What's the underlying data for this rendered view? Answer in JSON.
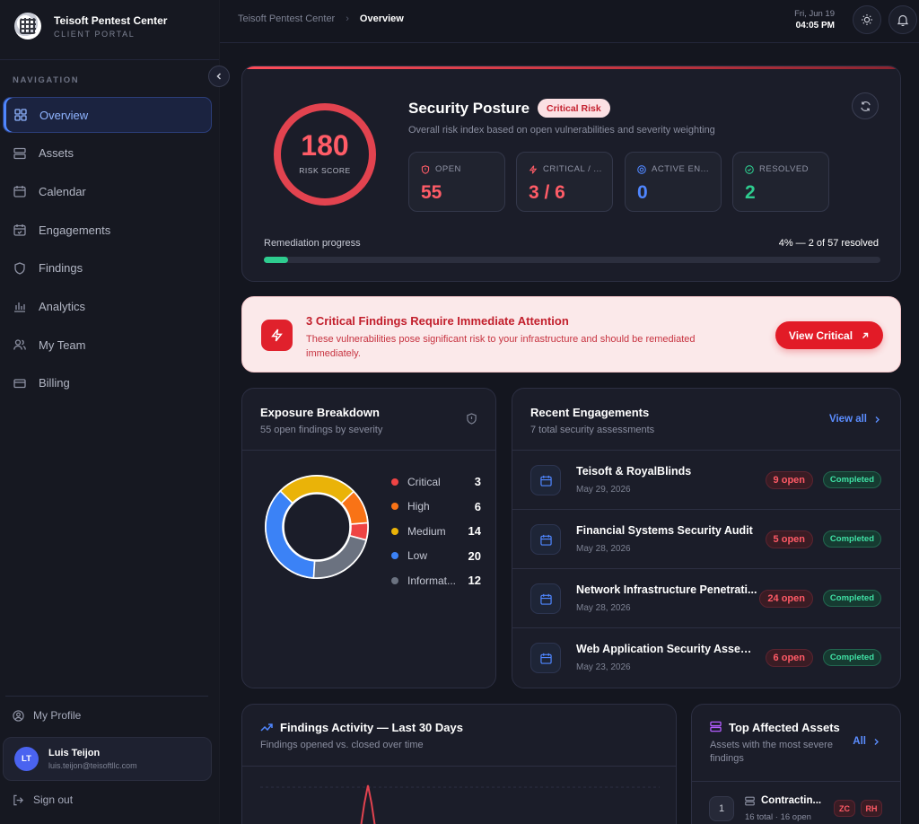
{
  "brand": {
    "name": "Teisoft Pentest Center",
    "subtitle": "CLIENT PORTAL"
  },
  "nav": {
    "title": "NAVIGATION",
    "items": [
      {
        "label": "Overview",
        "icon": "grid-icon",
        "active": true
      },
      {
        "label": "Assets",
        "icon": "server-icon"
      },
      {
        "label": "Calendar",
        "icon": "calendar-icon"
      },
      {
        "label": "Engagements",
        "icon": "calendar-check-icon"
      },
      {
        "label": "Findings",
        "icon": "shield-icon"
      },
      {
        "label": "Analytics",
        "icon": "bar-chart-icon"
      },
      {
        "label": "My Team",
        "icon": "users-icon"
      },
      {
        "label": "Billing",
        "icon": "credit-card-icon"
      }
    ]
  },
  "footer": {
    "profile_label": "My Profile",
    "user": {
      "initials": "LT",
      "name": "Luis Teijon",
      "email": "luis.teijon@teisoftllc.com"
    },
    "signout_label": "Sign out"
  },
  "topbar": {
    "breadcrumb_root": "Teisoft Pentest Center",
    "breadcrumb_current": "Overview",
    "date": "Fri, Jun 19",
    "time": "04:05 PM"
  },
  "posture": {
    "score": "180",
    "score_label": "RISK SCORE",
    "title": "Security Posture",
    "badge": "Critical Risk",
    "description": "Overall risk index based on open vulnerabilities and severity weighting",
    "stats": [
      {
        "label": "OPEN",
        "value": "55",
        "color": "#ff5c67",
        "icon": "shield-alert-icon"
      },
      {
        "label": "CRITICAL / ...",
        "value": "3 / 6",
        "color": "#ff5c67",
        "icon": "zap-icon"
      },
      {
        "label": "ACTIVE EN...",
        "value": "0",
        "color": "#4f86ff",
        "icon": "radar-icon"
      },
      {
        "label": "RESOLVED",
        "value": "2",
        "color": "#2ecc8f",
        "icon": "check-circle-icon"
      }
    ],
    "progress_label": "Remediation progress",
    "progress_text": "4% — 2 of 57 resolved",
    "progress_fraction": 0.04
  },
  "alert": {
    "title": "3 Critical Findings Require Immediate Attention",
    "text": "These vulnerabilities pose significant risk to your infrastructure and should be remediated immediately.",
    "button": "View Critical"
  },
  "exposure": {
    "title": "Exposure Breakdown",
    "subtitle": "55 open findings by severity"
  },
  "chart_data": {
    "type": "pie",
    "categories": [
      "Critical",
      "High",
      "Medium",
      "Low",
      "Informat..."
    ],
    "values": [
      3,
      6,
      14,
      20,
      12
    ],
    "colors": [
      "#ef4444",
      "#f97316",
      "#eab308",
      "#3b82f6",
      "#6b7280"
    ],
    "title": "",
    "legend": "right"
  },
  "engagements": {
    "title": "Recent Engagements",
    "subtitle": "7 total security assessments",
    "view_all": "View all",
    "items": [
      {
        "name": "Teisoft & RoyalBlinds",
        "date": "May 29, 2026",
        "open": "9 open",
        "status": "Completed"
      },
      {
        "name": "Financial Systems Security Audit",
        "date": "May 28, 2026",
        "open": "5 open",
        "status": "Completed"
      },
      {
        "name": "Network Infrastructure Penetrati...",
        "date": "May 28, 2026",
        "open": "24 open",
        "status": "Completed"
      },
      {
        "name": "Web Application Security Assess...",
        "date": "May 23, 2026",
        "open": "6 open",
        "status": "Completed"
      }
    ]
  },
  "activity": {
    "title": "Findings Activity — Last 30 Days",
    "subtitle": "Findings opened vs. closed over time"
  },
  "assets": {
    "title": "Top Affected Assets",
    "subtitle": "Assets with the most severe findings",
    "all_label": "All",
    "items": [
      {
        "rank": "1",
        "name": "Contractin...",
        "meta": "16 total · 16 open",
        "tags": [
          "ZC",
          "RH"
        ]
      }
    ]
  }
}
